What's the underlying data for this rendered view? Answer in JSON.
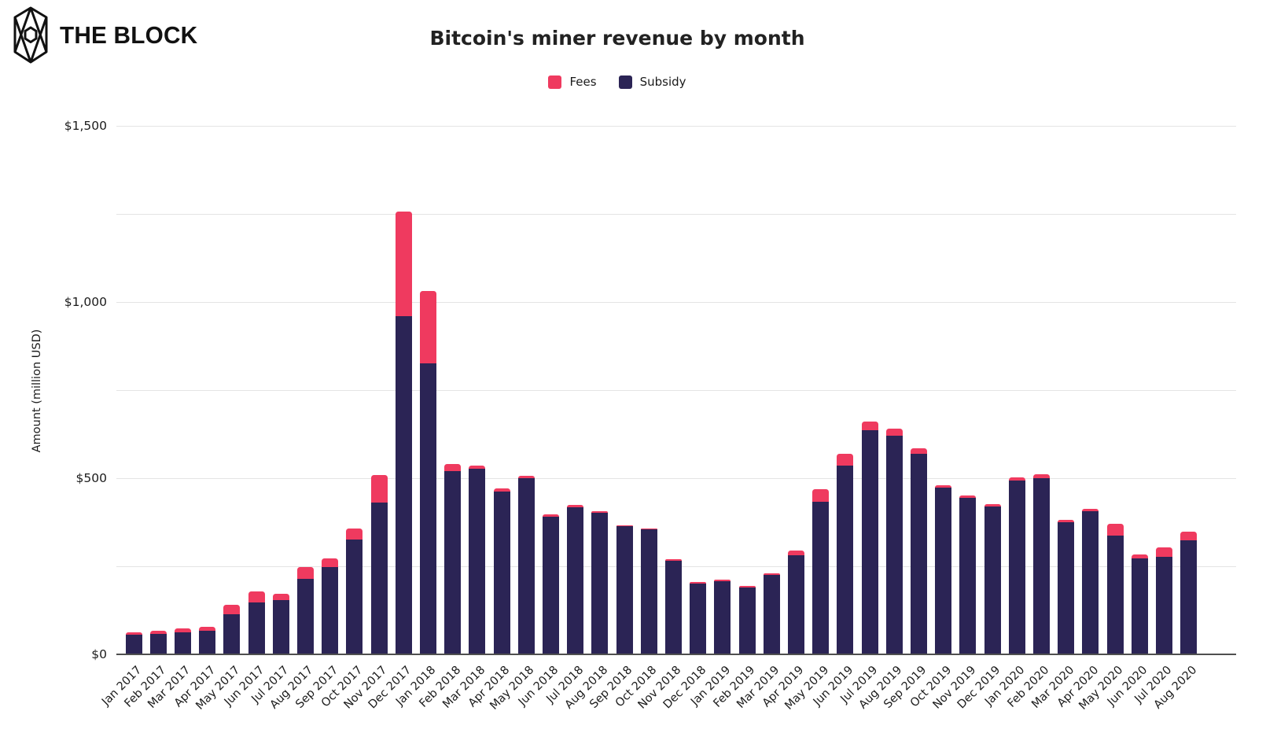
{
  "header": {
    "logo_text": "THE BLOCK",
    "title": "Bitcoin's miner revenue by month"
  },
  "legend": [
    {
      "label": "Fees",
      "color": "#EF3A5F"
    },
    {
      "label": "Subsidy",
      "color": "#2B2455"
    }
  ],
  "y_axis": {
    "title": "Amount (million USD)",
    "labels": [
      {
        "value": 1500,
        "text": "$1,500"
      },
      {
        "value": 1000,
        "text": "$1,000"
      },
      {
        "value": 500,
        "text": "$500"
      },
      {
        "value": 0,
        "text": "$0"
      }
    ],
    "gridline_values": [
      1500,
      1250,
      1000,
      750,
      500,
      250
    ]
  },
  "chart_data": {
    "type": "bar",
    "stacked": true,
    "title": "Bitcoin's miner revenue by month",
    "xlabel": "",
    "ylabel": "Amount (million USD)",
    "ylim": [
      0,
      1500
    ],
    "grid": true,
    "legend_position": "top",
    "categories": [
      "Jan 2017",
      "Feb 2017",
      "Mar 2017",
      "Apr 2017",
      "May 2017",
      "Jun 2017",
      "Jul 2017",
      "Aug 2017",
      "Sep 2017",
      "Oct 2017",
      "Nov 2017",
      "Dec 2017",
      "Jan 2018",
      "Feb 2018",
      "Mar 2018",
      "Apr 2018",
      "May 2018",
      "Jun 2018",
      "Jul 2018",
      "Aug 2018",
      "Sep 2018",
      "Oct 2018",
      "Nov 2018",
      "Dec 2018",
      "Jan 2019",
      "Feb 2019",
      "Mar 2019",
      "Apr 2019",
      "May 2019",
      "Jun 2019",
      "Jul 2019",
      "Aug 2019",
      "Sep 2019",
      "Oct 2019",
      "Nov 2019",
      "Dec 2019",
      "Jan 2020",
      "Feb 2020",
      "Mar 2020",
      "Apr 2020",
      "May 2020",
      "Jun 2020",
      "Jul 2020",
      "Aug 2020"
    ],
    "series": [
      {
        "name": "Fees",
        "color": "#EF3A5F",
        "values": [
          6,
          10,
          11,
          11,
          26,
          31,
          17,
          32,
          24,
          30,
          79,
          297,
          205,
          21,
          9,
          9,
          8,
          6,
          5,
          5,
          4,
          4,
          4,
          6,
          6,
          5,
          4,
          12,
          36,
          35,
          24,
          20,
          15,
          7,
          8,
          8,
          8,
          12,
          7,
          5,
          33,
          11,
          26,
          26
        ]
      },
      {
        "name": "Subsidy",
        "color": "#2B2455",
        "values": [
          54,
          55,
          61,
          64,
          112,
          146,
          152,
          213,
          245,
          324,
          428,
          957,
          824,
          518,
          525,
          460,
          497,
          389,
          416,
          400,
          361,
          352,
          263,
          198,
          205,
          188,
          224,
          280,
          430,
          533,
          635,
          618,
          567,
          470,
          441,
          417,
          492,
          497,
          373,
          405,
          335,
          270,
          275,
          321
        ]
      }
    ]
  }
}
